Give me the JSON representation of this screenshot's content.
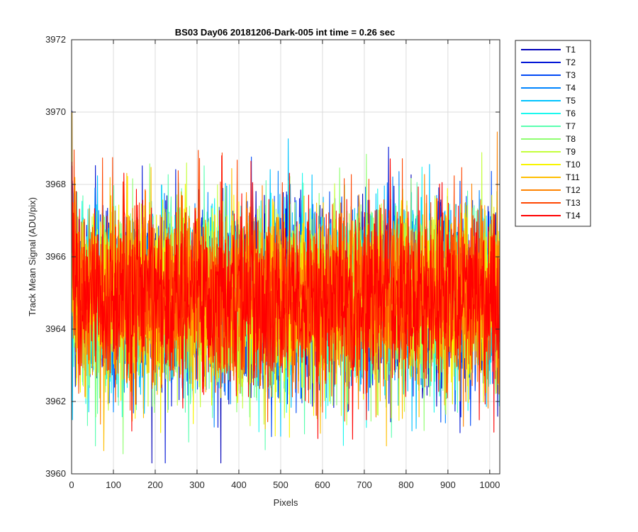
{
  "chart_data": {
    "type": "line",
    "title": "BS03 Day06 20181206-Dark-005 int time = 0.26 sec",
    "xlabel": "Pixels",
    "ylabel": "Track Mean Signal (ADU/pix)",
    "xlim": [
      0,
      1024
    ],
    "ylim": [
      3960,
      3972
    ],
    "xticks": [
      0,
      100,
      200,
      300,
      400,
      500,
      600,
      700,
      800,
      900,
      1000
    ],
    "yticks": [
      3960,
      3962,
      3964,
      3966,
      3968,
      3970,
      3972
    ],
    "grid": true,
    "legend_position": "outside-top-right",
    "noise": {
      "mean": 3964.9,
      "typical_min": 3962.3,
      "typical_max": 3967.6,
      "extreme_min": 3960.3,
      "extreme_max": 3970.8
    },
    "series": [
      {
        "name": "T1",
        "color": "#0000b8"
      },
      {
        "name": "T2",
        "color": "#0014d6"
      },
      {
        "name": "T3",
        "color": "#0049f5"
      },
      {
        "name": "T4",
        "color": "#0085ff"
      },
      {
        "name": "T5",
        "color": "#00c3ff"
      },
      {
        "name": "T6",
        "color": "#1af8ee"
      },
      {
        "name": "T7",
        "color": "#5affb0"
      },
      {
        "name": "T8",
        "color": "#8fff70"
      },
      {
        "name": "T9",
        "color": "#c4ff3b"
      },
      {
        "name": "T10",
        "color": "#f8f500"
      },
      {
        "name": "T11",
        "color": "#ffbe00"
      },
      {
        "name": "T12",
        "color": "#ff8300"
      },
      {
        "name": "T13",
        "color": "#ff4600"
      },
      {
        "name": "T14",
        "color": "#ff0000"
      }
    ]
  }
}
